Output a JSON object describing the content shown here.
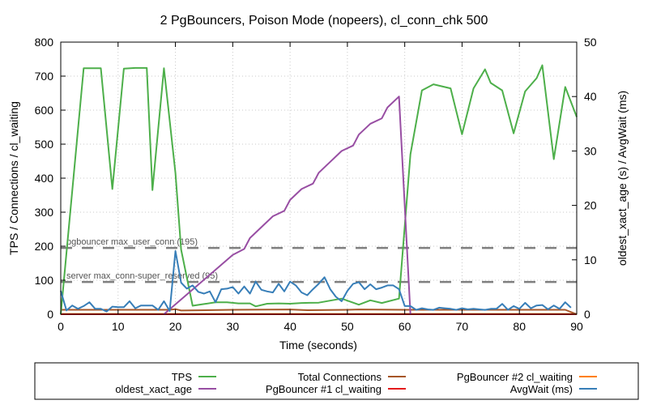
{
  "chart_data": {
    "type": "line",
    "title": "2 PgBouncers, Poison Mode (nopeers), cl_conn_chk 500",
    "xlabel": "Time (seconds)",
    "ylabel": "TPS / Connections / cl_waiting",
    "y2label": "oldest_xact_age (s) / AvgWait (ms)",
    "xlim": [
      0,
      90
    ],
    "ylim": [
      0,
      800
    ],
    "y2lim": [
      0,
      50
    ],
    "xticks": [
      "0",
      "10",
      "20",
      "30",
      "40",
      "50",
      "60",
      "70",
      "80",
      "90"
    ],
    "yticks": [
      "0",
      "100",
      "200",
      "300",
      "400",
      "500",
      "600",
      "700",
      "800"
    ],
    "y2ticks": [
      "0",
      "10",
      "20",
      "30",
      "40",
      "50"
    ],
    "grid": true,
    "legend_position": "bottom",
    "thresholds": [
      {
        "label": "pgbouncer max_user_conn (195)",
        "value": 195,
        "color": "#7f7f7f"
      },
      {
        "label": "server max_conn-super_reserved (95)",
        "value": 95,
        "color": "#7f7f7f"
      }
    ],
    "series": [
      {
        "name": "TPS",
        "axis": "y",
        "color": "#4daf4a",
        "x": [
          0,
          4,
          7,
          9,
          11,
          13,
          15,
          16,
          18,
          20,
          21,
          23,
          25,
          27,
          29,
          31,
          33,
          34,
          36,
          38,
          40,
          42,
          45,
          49,
          52,
          54,
          56,
          59,
          61,
          63,
          65,
          68,
          70,
          72,
          74,
          75,
          77,
          79,
          81,
          83,
          84,
          86,
          88,
          90
        ],
        "y": [
          0,
          723,
          723,
          368,
          722,
          724,
          724,
          365,
          723,
          415,
          190,
          25,
          30,
          35,
          35,
          32,
          32,
          23,
          31,
          32,
          31,
          33,
          34,
          46,
          28,
          41,
          33,
          46,
          470,
          658,
          676,
          664,
          529,
          664,
          720,
          680,
          658,
          532,
          655,
          694,
          732,
          456,
          668,
          580
        ]
      },
      {
        "name": "oldest_xact_age",
        "axis": "y2",
        "color": "#984ea3",
        "x": [
          18,
          30,
          32,
          33,
          37,
          39,
          40,
          42,
          44,
          45,
          47,
          49,
          51,
          52,
          54,
          56,
          57,
          59,
          61
        ],
        "y": [
          0,
          10.9,
          12,
          14,
          18,
          19,
          21,
          23,
          24,
          26,
          28,
          30,
          31,
          33,
          35,
          36,
          38,
          40,
          0
        ]
      },
      {
        "name": "Total Connections",
        "axis": "y",
        "color": "#a65628",
        "x": [
          0,
          10,
          19,
          20,
          21,
          30,
          40,
          43,
          50,
          52,
          60,
          70,
          80,
          88,
          90
        ],
        "y": [
          13,
          13,
          13,
          15,
          11,
          13,
          14,
          12,
          13,
          14,
          13,
          13,
          13,
          13,
          0
        ]
      },
      {
        "name": "PgBouncer #1 cl_waiting",
        "axis": "y",
        "color": "#e41a1c",
        "x": [
          0,
          90
        ],
        "y": [
          0,
          0
        ]
      },
      {
        "name": "PgBouncer #2 cl_waiting",
        "axis": "y",
        "color": "#ff7f00",
        "x": [
          0,
          90
        ],
        "y": [
          1,
          1
        ]
      },
      {
        "name": "AvgWait (ms)",
        "axis": "y2",
        "color": "#377eb8",
        "x": [
          0,
          1,
          2,
          3,
          4,
          5,
          6,
          7,
          8,
          9,
          10,
          11,
          12,
          13,
          14,
          15,
          16,
          17,
          18,
          19,
          20,
          21,
          22,
          23,
          24,
          25,
          26,
          27,
          28,
          29,
          30,
          31,
          32,
          33,
          34,
          35,
          36,
          37,
          38,
          39,
          40,
          41,
          42,
          43,
          44,
          45,
          46,
          47,
          48,
          49,
          50,
          51,
          52,
          53,
          54,
          55,
          56,
          57,
          58,
          59,
          60,
          61,
          62,
          63,
          64,
          65,
          66,
          67,
          68,
          69,
          70,
          71,
          72,
          73,
          74,
          75,
          76,
          77,
          78,
          79,
          80,
          81,
          82,
          83,
          84,
          85,
          86,
          87,
          88,
          89
        ],
        "y": [
          4.3,
          0.7,
          1.6,
          1.0,
          1.5,
          2.2,
          1.0,
          1.0,
          0.5,
          1.4,
          1.3,
          1.3,
          2.4,
          1.1,
          1.6,
          1.6,
          1.6,
          0.8,
          2.4,
          0.6,
          11.6,
          5.8,
          4.7,
          5.3,
          4.1,
          3.8,
          4.2,
          2.2,
          4.6,
          4.7,
          5.0,
          3.8,
          5.1,
          3.8,
          6.0,
          4.5,
          4.2,
          4.0,
          5.6,
          4.2,
          6.0,
          5.3,
          4.0,
          3.5,
          4.6,
          5.6,
          6.8,
          4.6,
          3.2,
          2.4,
          4.3,
          5.6,
          5.9,
          4.6,
          5.5,
          4.6,
          4.9,
          5.3,
          5.3,
          4.6,
          1.5,
          1.5,
          0.8,
          1.1,
          0.9,
          0.8,
          1.2,
          1.1,
          1.0,
          0.8,
          1.1,
          0.9,
          1.0,
          0.9,
          0.8,
          1.0,
          1.0,
          1.9,
          0.8,
          1.5,
          1.0,
          2.1,
          1.1,
          1.6,
          1.7,
          0.9,
          1.6,
          1.0,
          2.2,
          1.2
        ]
      }
    ]
  }
}
